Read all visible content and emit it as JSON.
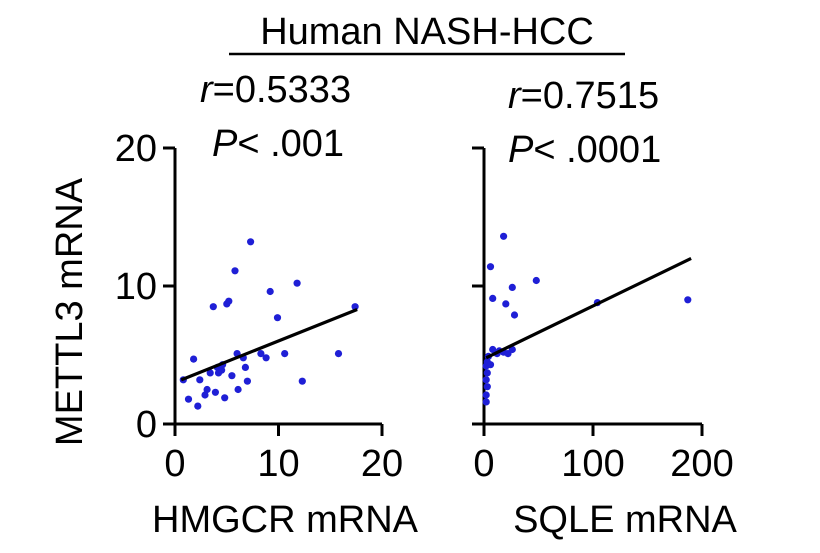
{
  "title": "Human NASH-HCC",
  "colors": {
    "points": "#1f1fd6",
    "line": "#000000"
  },
  "chart_data": [
    {
      "type": "scatter",
      "panel": "left",
      "title": "",
      "stat_r_prefix": "r",
      "stat_r_value": "=0.5333",
      "stat_p_prefix": "P",
      "stat_p_value": "< .001",
      "xlabel": "HMGCR mRNA",
      "ylabel": "METTL3 mRNA",
      "xlim": [
        0,
        20
      ],
      "ylim": [
        0,
        20
      ],
      "xticks": [
        0,
        10,
        20
      ],
      "yticks": [
        0,
        10,
        20
      ],
      "xtick_labels": [
        "0",
        "10",
        "20"
      ],
      "ytick_labels": [
        "0",
        "10",
        "20"
      ],
      "grid": false,
      "fit_line": {
        "x": [
          0.6,
          17.6
        ],
        "y": [
          3.2,
          8.3
        ]
      },
      "points": [
        {
          "x": 0.8,
          "y": 3.2
        },
        {
          "x": 1.3,
          "y": 1.8
        },
        {
          "x": 1.8,
          "y": 4.7
        },
        {
          "x": 2.2,
          "y": 1.3
        },
        {
          "x": 2.4,
          "y": 3.2
        },
        {
          "x": 2.9,
          "y": 2.1
        },
        {
          "x": 3.1,
          "y": 2.5
        },
        {
          "x": 3.4,
          "y": 3.7
        },
        {
          "x": 3.7,
          "y": 8.5
        },
        {
          "x": 3.9,
          "y": 2.3
        },
        {
          "x": 4.1,
          "y": 4.1
        },
        {
          "x": 4.2,
          "y": 3.7
        },
        {
          "x": 4.5,
          "y": 3.9
        },
        {
          "x": 4.6,
          "y": 4.3
        },
        {
          "x": 4.8,
          "y": 1.9
        },
        {
          "x": 5.0,
          "y": 8.7
        },
        {
          "x": 5.2,
          "y": 8.9
        },
        {
          "x": 5.5,
          "y": 3.5
        },
        {
          "x": 5.8,
          "y": 11.1
        },
        {
          "x": 6.0,
          "y": 5.1
        },
        {
          "x": 6.1,
          "y": 2.5
        },
        {
          "x": 6.6,
          "y": 4.8
        },
        {
          "x": 6.8,
          "y": 4.1
        },
        {
          "x": 7.0,
          "y": 3.1
        },
        {
          "x": 7.3,
          "y": 13.2
        },
        {
          "x": 8.3,
          "y": 5.1
        },
        {
          "x": 8.8,
          "y": 4.8
        },
        {
          "x": 9.2,
          "y": 9.6
        },
        {
          "x": 9.9,
          "y": 7.7
        },
        {
          "x": 10.6,
          "y": 5.1
        },
        {
          "x": 11.8,
          "y": 10.2
        },
        {
          "x": 12.3,
          "y": 3.1
        },
        {
          "x": 15.8,
          "y": 5.1
        },
        {
          "x": 17.4,
          "y": 8.5
        }
      ]
    },
    {
      "type": "scatter",
      "panel": "right",
      "title": "",
      "stat_r_prefix": "r",
      "stat_r_value": "=0.7515",
      "stat_p_prefix": "P",
      "stat_p_value": "< .0001",
      "xlabel": "SQLE mRNA",
      "ylabel": "",
      "xlim": [
        0,
        200
      ],
      "ylim": [
        0,
        20
      ],
      "xticks": [
        0,
        100,
        200
      ],
      "yticks": [
        0,
        10,
        20
      ],
      "xtick_labels": [
        "0",
        "100",
        "200"
      ],
      "ytick_labels": [
        "",
        "",
        ""
      ],
      "grid": false,
      "fit_line": {
        "x": [
          2,
          190
        ],
        "y": [
          4.8,
          12.0
        ]
      },
      "points": [
        {
          "x": 2,
          "y": 1.6
        },
        {
          "x": 2,
          "y": 2.1
        },
        {
          "x": 3,
          "y": 2.7
        },
        {
          "x": 2,
          "y": 3.2
        },
        {
          "x": 3,
          "y": 3.7
        },
        {
          "x": 2,
          "y": 4.2
        },
        {
          "x": 3,
          "y": 4.5
        },
        {
          "x": 4,
          "y": 4.9
        },
        {
          "x": 6,
          "y": 4.3
        },
        {
          "x": 8,
          "y": 5.4
        },
        {
          "x": 12,
          "y": 5.1
        },
        {
          "x": 14,
          "y": 5.3
        },
        {
          "x": 18,
          "y": 5.2
        },
        {
          "x": 22,
          "y": 5.1
        },
        {
          "x": 26,
          "y": 5.4
        },
        {
          "x": 6,
          "y": 11.4
        },
        {
          "x": 8,
          "y": 9.1
        },
        {
          "x": 18,
          "y": 13.6
        },
        {
          "x": 20,
          "y": 8.7
        },
        {
          "x": 26,
          "y": 9.9
        },
        {
          "x": 28,
          "y": 7.9
        },
        {
          "x": 48,
          "y": 10.4
        },
        {
          "x": 104,
          "y": 8.8
        },
        {
          "x": 187,
          "y": 9.0
        }
      ]
    }
  ]
}
